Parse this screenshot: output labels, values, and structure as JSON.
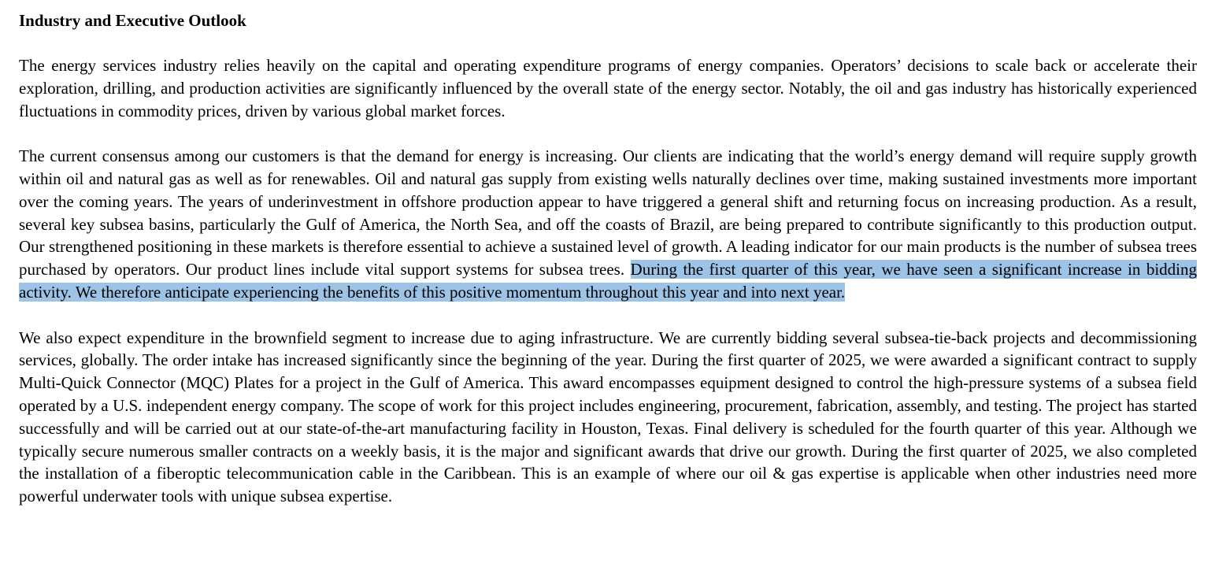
{
  "document": {
    "heading": "Industry and Executive Outlook",
    "paragraphs": [
      {
        "text": "The energy services industry relies heavily on the capital and operating expenditure programs of energy companies. Operators’ decisions to scale back or accelerate their exploration, drilling, and production activities are significantly influenced by the overall state of the energy sector. Notably, the oil and gas industry has historically experienced fluctuations in commodity prices, driven by various global market forces."
      },
      {
        "text": "The current consensus among our customers is that the demand for energy is increasing. Our clients are indicating that the world’s energy demand will require supply growth within oil and natural gas as well as for renewables. Oil and natural gas supply from existing wells naturally declines over time, making sustained investments more important over the coming years. The years of underinvestment in offshore production appear to have triggered a general shift and returning focus on increasing production. As a result, several key subsea basins, particularly the Gulf of America, the North Sea, and off the coasts of Brazil, are being prepared to contribute significantly to this production output. Our strengthened positioning in these markets is therefore essential to achieve a sustained level of growth. A leading indicator for our main products is the number of subsea trees purchased by operators. Our product lines include vital support systems for subsea trees. ",
        "highlighted": "During the first quarter of this year, we have seen a significant increase in bidding activity. We therefore anticipate experiencing the benefits of this positive momentum throughout this year and into next year."
      },
      {
        "text": "We also expect expenditure in the brownfield segment to increase due to aging infrastructure. We are currently bidding several subsea-tie-back projects and decommissioning services, globally. The order intake has increased significantly since the beginning of the year. During the first quarter of 2025, we were awarded a significant contract to supply Multi-Quick Connector (MQC) Plates for a project in the Gulf of America. This award encompasses equipment designed to control the high-pressure systems of a subsea field operated by a U.S. independent energy company. The scope of work for this project includes engineering, procurement, fabrication, assembly, and testing. The project has started successfully and will be carried out at our state-of-the-art manufacturing facility in Houston, Texas. Final delivery is scheduled for the fourth quarter of this year. Although we typically secure numerous smaller contracts on a weekly basis, it is the major and significant awards that drive our growth. During the first quarter of 2025, we also completed the installation of a fiberoptic telecommunication cable in the Caribbean. This is an example of where our oil & gas expertise is applicable when other industries need more powerful underwater tools with unique subsea expertise."
      }
    ],
    "colors": {
      "text": "#000000",
      "background": "#ffffff",
      "selection_highlight": "#9dc3e6"
    }
  }
}
